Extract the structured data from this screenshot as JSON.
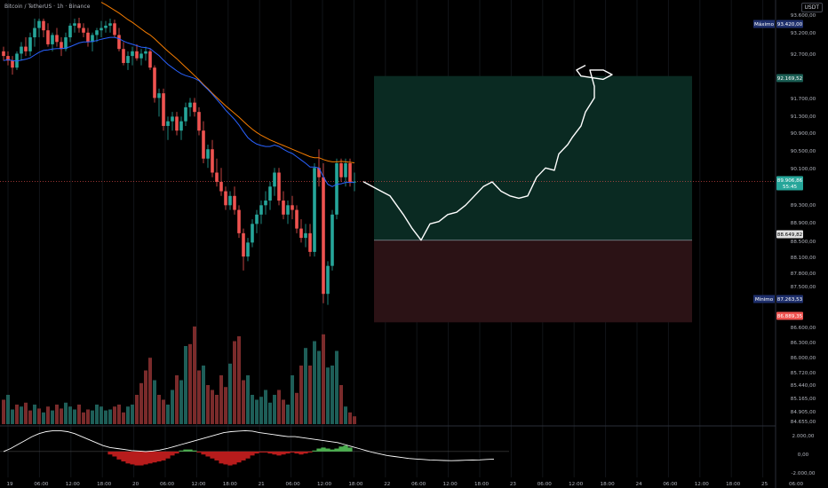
{
  "header": {
    "title": "Bitcoin / TetherUS · 1h · Binance",
    "currency": "USDT"
  },
  "colors": {
    "up": "#26a69a",
    "down": "#ef5350",
    "ema_fast": "#2962ff",
    "ema_slow": "#f57c00",
    "target_zone": "#0a2a22",
    "stop_zone": "#2b1215",
    "grid": "#111418",
    "axis_text": "#b2b5be"
  },
  "chart_data": [
    {
      "type": "candlestick",
      "title": "Bitcoin / TetherUS · 1h · Binance",
      "y_ticks": [
        "93.600,00",
        "93.200,00",
        "92.700,00",
        "91.700,00",
        "91.300,00",
        "90.900,00",
        "90.500,00",
        "90.100,00",
        "89.300,00",
        "88.900,00",
        "88.500,00",
        "88.100,00",
        "87.800,00",
        "87.500,00",
        "86.600,00",
        "86.300,00",
        "86.000,00",
        "85.720,00",
        "85.440,00",
        "85.165,00",
        "84.905,00",
        "84.655,00"
      ],
      "x_ticks": [
        "19",
        "06:00",
        "12:00",
        "18:00",
        "20",
        "06:00",
        "12:00",
        "18:00",
        "21",
        "06:00",
        "12:00",
        "18:00",
        "22",
        "06:00",
        "12:00",
        "18:00",
        "23",
        "06:00",
        "12:00",
        "18:00",
        "24",
        "06:00",
        "12:00",
        "18:00",
        "25",
        "06:00"
      ],
      "ylim": [
        86800,
        93800
      ],
      "price_labels": [
        {
          "tag": "Máximo",
          "value": "93.420,00"
        },
        {
          "tag": "",
          "value": "92.169,52"
        },
        {
          "tag": "",
          "value": "89.906,86",
          "sub": "55:45"
        },
        {
          "tag": "",
          "value": "88.649,82"
        },
        {
          "tag": "Mínimo",
          "value": "87.263,53"
        },
        {
          "tag": "",
          "value": "86.889,35"
        }
      ],
      "position": {
        "entry": 88650,
        "target": 92170,
        "stop": 86890
      },
      "candles": [
        [
          92700,
          92800,
          92500,
          92600
        ],
        [
          92600,
          92700,
          92400,
          92500
        ],
        [
          92500,
          92600,
          92200,
          92350
        ],
        [
          92350,
          92700,
          92300,
          92650
        ],
        [
          92650,
          92900,
          92500,
          92800
        ],
        [
          92800,
          93000,
          92600,
          92700
        ],
        [
          92700,
          93100,
          92600,
          93000
        ],
        [
          93000,
          93400,
          92800,
          93200
        ],
        [
          93200,
          93400,
          93000,
          93350
        ],
        [
          93350,
          93400,
          93000,
          93150
        ],
        [
          93150,
          93300,
          92800,
          92850
        ],
        [
          92850,
          93100,
          92700,
          93050
        ],
        [
          93050,
          93200,
          92800,
          92900
        ],
        [
          92900,
          93000,
          92600,
          92750
        ],
        [
          92750,
          93100,
          92700,
          93000
        ],
        [
          93000,
          93300,
          92900,
          93250
        ],
        [
          93250,
          93400,
          93100,
          93300
        ],
        [
          93300,
          93420,
          93100,
          93200
        ],
        [
          93200,
          93300,
          93000,
          93100
        ],
        [
          93100,
          93200,
          92800,
          92900
        ],
        [
          92900,
          93100,
          92700,
          93050
        ],
        [
          93050,
          93200,
          92900,
          93150
        ],
        [
          93150,
          93350,
          93000,
          93200
        ],
        [
          93200,
          93350,
          93100,
          93250
        ],
        [
          93250,
          93400,
          93100,
          93300
        ],
        [
          93300,
          93380,
          93000,
          93050
        ],
        [
          93050,
          93200,
          92700,
          92750
        ],
        [
          92750,
          92900,
          92400,
          92450
        ],
        [
          92450,
          92700,
          92300,
          92600
        ],
        [
          92600,
          92800,
          92400,
          92700
        ],
        [
          92700,
          92850,
          92500,
          92550
        ],
        [
          92550,
          92750,
          92400,
          92650
        ],
        [
          92650,
          92800,
          92500,
          92700
        ],
        [
          92700,
          92750,
          92300,
          92350
        ],
        [
          92350,
          92400,
          91600,
          91700
        ],
        [
          91700,
          91900,
          91300,
          91800
        ],
        [
          91800,
          91900,
          91000,
          91100
        ],
        [
          91100,
          91300,
          90800,
          91200
        ],
        [
          91200,
          91400,
          91000,
          91300
        ],
        [
          91300,
          91400,
          90900,
          91000
        ],
        [
          91000,
          91300,
          90800,
          91200
        ],
        [
          91200,
          91600,
          91100,
          91500
        ],
        [
          91500,
          91700,
          91300,
          91600
        ],
        [
          91600,
          91700,
          91300,
          91400
        ],
        [
          91400,
          91500,
          90900,
          91000
        ],
        [
          91000,
          91200,
          90300,
          90400
        ],
        [
          90400,
          90700,
          90200,
          90600
        ],
        [
          90600,
          90800,
          90000,
          90100
        ],
        [
          90100,
          90400,
          89800,
          89900
        ],
        [
          89900,
          90200,
          89600,
          89700
        ],
        [
          89700,
          89800,
          89300,
          89400
        ],
        [
          89400,
          89700,
          89300,
          89600
        ],
        [
          89600,
          89800,
          89200,
          89300
        ],
        [
          89300,
          89400,
          88700,
          88800
        ],
        [
          88800,
          88900,
          88000,
          88300
        ],
        [
          88300,
          88700,
          88200,
          88600
        ],
        [
          88600,
          89100,
          88500,
          89000
        ],
        [
          89000,
          89300,
          88800,
          89200
        ],
        [
          89200,
          89500,
          89000,
          89400
        ],
        [
          89400,
          89700,
          89200,
          89500
        ],
        [
          89500,
          89900,
          89300,
          89800
        ],
        [
          89800,
          90200,
          89600,
          90100
        ],
        [
          90100,
          90200,
          89400,
          89500
        ],
        [
          89500,
          89700,
          89100,
          89200
        ],
        [
          89200,
          89500,
          89000,
          89400
        ],
        [
          89400,
          89600,
          89100,
          89300
        ],
        [
          89300,
          89400,
          88800,
          88900
        ],
        [
          88900,
          89100,
          88600,
          88700
        ],
        [
          88700,
          89000,
          88500,
          88800
        ],
        [
          88800,
          89000,
          88300,
          88400
        ],
        [
          88400,
          90300,
          88300,
          90200
        ],
        [
          90200,
          90600,
          89800,
          90000
        ],
        [
          90000,
          90300,
          87300,
          87500
        ],
        [
          87500,
          88200,
          87263,
          88100
        ],
        [
          88100,
          89300,
          88000,
          89200
        ],
        [
          89200,
          90400,
          89100,
          90300
        ],
        [
          90300,
          90400,
          89900,
          90000
        ],
        [
          90000,
          90400,
          89800,
          90300
        ],
        [
          90300,
          90400,
          89800,
          89900
        ],
        [
          89900,
          90100,
          89700,
          89907
        ]
      ],
      "ema_fast": [
        92500,
        92520,
        92500,
        92490,
        92510,
        92530,
        92560,
        92620,
        92680,
        92720,
        92730,
        92750,
        92760,
        92760,
        92770,
        92800,
        92840,
        92880,
        92900,
        92900,
        92910,
        92930,
        92960,
        92980,
        93000,
        93000,
        92970,
        92920,
        92880,
        92850,
        92820,
        92790,
        92780,
        92760,
        92680,
        92610,
        92510,
        92420,
        92350,
        92280,
        92220,
        92180,
        92150,
        92120,
        92070,
        91970,
        91880,
        91780,
        91670,
        91560,
        91440,
        91340,
        91240,
        91120,
        90980,
        90850,
        90770,
        90710,
        90680,
        90660,
        90660,
        90690,
        90660,
        90600,
        90550,
        90510,
        90440,
        90370,
        90300,
        90220,
        90220,
        90200,
        90010,
        89850,
        89800,
        89850,
        89860,
        89890,
        89890,
        89890
      ],
      "ema_slow": [
        null,
        null,
        null,
        null,
        null,
        null,
        null,
        null,
        null,
        null,
        null,
        null,
        null,
        null,
        null,
        null,
        null,
        null,
        null,
        null,
        null,
        null,
        93750,
        93700,
        93640,
        93580,
        93520,
        93450,
        93380,
        93320,
        93250,
        93180,
        93110,
        93050,
        92970,
        92880,
        92790,
        92700,
        92620,
        92540,
        92450,
        92360,
        92270,
        92180,
        92090,
        91990,
        91900,
        91800,
        91710,
        91620,
        91530,
        91450,
        91370,
        91290,
        91200,
        91110,
        91030,
        90960,
        90900,
        90850,
        90800,
        90760,
        90720,
        90680,
        90640,
        90600,
        90560,
        90520,
        90480,
        90440,
        90420,
        90420,
        90380,
        90350,
        90330,
        90330,
        90340,
        90330,
        90320,
        90310
      ],
      "sketch_path": [
        [
          81,
          89907
        ],
        [
          84,
          89750
        ],
        [
          87,
          89600
        ],
        [
          90,
          89200
        ],
        [
          92,
          88900
        ],
        [
          94,
          88650
        ],
        [
          96,
          89000
        ],
        [
          98,
          89050
        ],
        [
          100,
          89200
        ],
        [
          102,
          89250
        ],
        [
          104,
          89400
        ],
        [
          106,
          89600
        ],
        [
          108,
          89800
        ],
        [
          110,
          89900
        ],
        [
          112,
          89700
        ],
        [
          114,
          89600
        ],
        [
          116,
          89550
        ],
        [
          118,
          89600
        ],
        [
          120,
          90000
        ],
        [
          122,
          90200
        ],
        [
          124,
          90150
        ],
        [
          125,
          90500
        ],
        [
          127,
          90700
        ],
        [
          128,
          90850
        ],
        [
          130,
          91100
        ],
        [
          131,
          91400
        ],
        [
          133,
          91700
        ],
        [
          133,
          91950
        ],
        [
          132,
          92300
        ],
        [
          135,
          92300
        ],
        [
          137,
          92200
        ],
        [
          135,
          92100
        ],
        [
          130,
          92170
        ],
        [
          129,
          92300
        ],
        [
          131,
          92400
        ]
      ],
      "projection_x": [
        78,
        155
      ]
    },
    {
      "type": "bar",
      "name": "volume",
      "y_ticks": [],
      "values": [
        0.25,
        0.3,
        0.15,
        0.2,
        0.18,
        0.22,
        0.14,
        0.2,
        0.16,
        0.12,
        0.18,
        0.14,
        0.2,
        0.16,
        0.22,
        0.18,
        0.15,
        0.2,
        0.12,
        0.15,
        0.14,
        0.2,
        0.18,
        0.14,
        0.15,
        0.18,
        0.2,
        0.12,
        0.18,
        0.2,
        0.3,
        0.42,
        0.55,
        0.68,
        0.45,
        0.3,
        0.25,
        0.2,
        0.35,
        0.5,
        0.45,
        0.8,
        0.82,
        1.0,
        0.55,
        0.6,
        0.4,
        0.35,
        0.3,
        0.5,
        0.38,
        0.62,
        0.85,
        0.9,
        0.45,
        0.5,
        0.3,
        0.25,
        0.28,
        0.35,
        0.22,
        0.3,
        0.35,
        0.25,
        0.2,
        0.5,
        0.32,
        0.6,
        0.78,
        0.6,
        0.85,
        0.75,
        0.92,
        0.58,
        0.6,
        0.75,
        0.4,
        0.18,
        0.12,
        0.08
      ],
      "up": [
        0,
        1,
        1,
        0,
        1,
        0,
        0,
        1,
        0,
        1,
        0,
        1,
        0,
        0,
        1,
        1,
        1,
        0,
        0,
        0,
        1,
        1,
        1,
        1,
        1,
        0,
        0,
        0,
        1,
        1,
        0,
        0,
        0,
        0,
        1,
        0,
        0,
        1,
        1,
        0,
        1,
        1,
        0,
        0,
        0,
        1,
        0,
        0,
        0,
        0,
        0,
        1,
        0,
        0,
        0,
        1,
        1,
        1,
        1,
        1,
        1,
        1,
        0,
        0,
        1,
        1,
        0,
        0,
        1,
        0,
        1,
        1,
        0,
        1,
        1,
        1,
        0,
        1,
        0,
        0
      ]
    },
    {
      "type": "area",
      "name": "oscillator",
      "y_ticks": [
        "2.000,00",
        "0,00",
        "-2.000,00"
      ],
      "ylim": [
        -2600,
        2400
      ],
      "line": [
        0,
        300,
        700,
        1100,
        1500,
        1800,
        2000,
        2100,
        2100,
        2000,
        1800,
        1500,
        1200,
        900,
        600,
        400,
        300,
        200,
        100,
        50,
        0,
        50,
        150,
        300,
        500,
        700,
        900,
        1100,
        1300,
        1500,
        1700,
        1900,
        2000,
        2050,
        2100,
        2050,
        1900,
        1800,
        1700,
        1600,
        1500,
        1500,
        1400,
        1300,
        1200,
        1100,
        1000,
        900,
        700,
        500,
        300,
        100,
        -100,
        -250,
        -400,
        -500,
        -600,
        -700,
        -750,
        -800,
        -850,
        -880,
        -900,
        -920,
        -900,
        -880,
        -860,
        -840,
        -800,
        -760
      ],
      "histogram": [
        -300,
        -500,
        -800,
        -1000,
        -1200,
        -1300,
        -1400,
        -1400,
        -1300,
        -1200,
        -1100,
        -1000,
        -900,
        -700,
        -400,
        -200,
        100,
        200,
        200,
        100,
        -100,
        -300,
        -500,
        -700,
        -900,
        -1200,
        -1300,
        -1400,
        -1300,
        -1100,
        -900,
        -700,
        -400,
        -200,
        -100,
        -100,
        -200,
        -300,
        -400,
        -300,
        -200,
        -100,
        -200,
        -300,
        -200,
        -100,
        100,
        300,
        400,
        300,
        200,
        300,
        500,
        600,
        400,
        0
      ]
    },
    {
      "type": "x_axis",
      "labels": [
        "19",
        "06:00",
        "12:00",
        "18:00",
        "20",
        "06:00",
        "12:00",
        "18:00",
        "21",
        "06:00",
        "12:00",
        "18:00",
        "22",
        "06:00",
        "12:00",
        "18:00",
        "23",
        "06:00",
        "12:00",
        "18:00",
        "24",
        "06:00",
        "12:00",
        "18:00",
        "25",
        "06:00"
      ]
    }
  ]
}
